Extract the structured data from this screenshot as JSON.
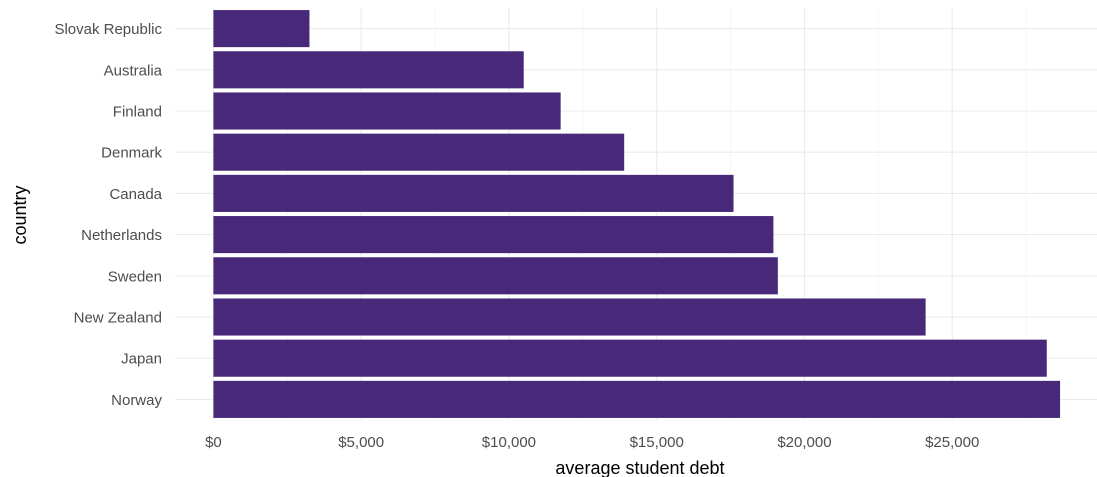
{
  "chart_data": {
    "type": "bar",
    "orientation": "horizontal",
    "categories": [
      "Slovak Republic",
      "Australia",
      "Finland",
      "Denmark",
      "Canada",
      "Netherlands",
      "Sweden",
      "New Zealand",
      "Japan",
      "Norway"
    ],
    "values": [
      3250,
      10500,
      11750,
      13900,
      17600,
      18950,
      19100,
      24100,
      28200,
      28650
    ],
    "xlabel": "average student debt",
    "ylabel": "country",
    "xlim": [
      -1300,
      29900
    ],
    "x_ticks": [
      0,
      5000,
      10000,
      15000,
      20000,
      25000
    ],
    "x_tick_labels": [
      "$0",
      "$5,000",
      "$10,000",
      "$15,000",
      "$20,000",
      "$25,000"
    ],
    "grid": true,
    "legend": "none",
    "colors": {
      "bar": "#482878",
      "background": "#ffffff",
      "grid": "#ebebeb"
    }
  }
}
